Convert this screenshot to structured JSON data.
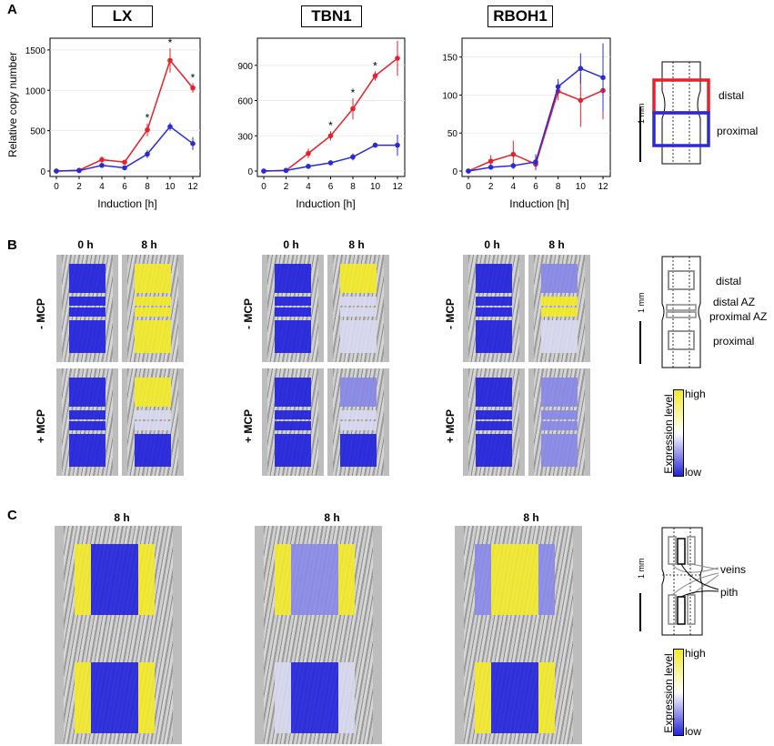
{
  "panels": {
    "a": "A",
    "b": "B",
    "c": "C"
  },
  "genes": [
    "LX",
    "TBN1",
    "RBOH1"
  ],
  "axis": {
    "ylabel": "Relative copy number",
    "xlabel": "Induction [h]"
  },
  "chart_data": [
    {
      "type": "line",
      "title": "LX",
      "xlabel": "Induction [h]",
      "ylabel": "Relative copy number",
      "x": [
        0,
        2,
        4,
        6,
        8,
        10,
        12
      ],
      "ylim": [
        0,
        1600
      ],
      "yticks": [
        0,
        500,
        1000,
        1500
      ],
      "series": [
        {
          "name": "distal",
          "color": "#e8202a",
          "values": [
            0,
            10,
            140,
            110,
            510,
            1370,
            1030
          ],
          "err": [
            5,
            10,
            40,
            20,
            80,
            150,
            60
          ]
        },
        {
          "name": "proximal",
          "color": "#2b2bd6",
          "values": [
            0,
            5,
            70,
            40,
            210,
            550,
            340
          ],
          "err": [
            3,
            5,
            15,
            10,
            50,
            50,
            80
          ]
        }
      ],
      "significant_x": [
        8,
        10,
        12
      ]
    },
    {
      "type": "line",
      "title": "TBN1",
      "xlabel": "Induction [h]",
      "ylabel": "",
      "x": [
        0,
        2,
        4,
        6,
        8,
        10,
        12
      ],
      "ylim": [
        0,
        1100
      ],
      "yticks": [
        0,
        300,
        600,
        900
      ],
      "series": [
        {
          "name": "distal",
          "color": "#e8202a",
          "values": [
            0,
            5,
            150,
            300,
            530,
            810,
            960
          ],
          "err": [
            3,
            5,
            40,
            40,
            90,
            40,
            150
          ]
        },
        {
          "name": "proximal",
          "color": "#2b2bd6",
          "values": [
            0,
            5,
            40,
            70,
            120,
            220,
            220
          ],
          "err": [
            3,
            5,
            20,
            10,
            30,
            10,
            90
          ]
        }
      ],
      "significant_x": [
        6,
        8,
        10
      ]
    },
    {
      "type": "line",
      "title": "RBOH1",
      "xlabel": "Induction [h]",
      "ylabel": "",
      "x": [
        0,
        2,
        4,
        6,
        8,
        10,
        12
      ],
      "ylim": [
        0,
        170
      ],
      "yticks": [
        0,
        50,
        100,
        150
      ],
      "series": [
        {
          "name": "distal",
          "color": "#e8202a",
          "values": [
            0,
            13,
            22,
            9,
            105,
            93,
            106
          ],
          "err": [
            2,
            8,
            18,
            8,
            12,
            35,
            38
          ]
        },
        {
          "name": "proximal",
          "color": "#2b2bd6",
          "values": [
            0,
            5,
            7,
            12,
            111,
            135,
            123
          ],
          "err": [
            2,
            3,
            4,
            10,
            10,
            20,
            45
          ]
        }
      ],
      "significant_x": []
    }
  ],
  "diagram_a": {
    "scale": "1 mm",
    "distal": "distal",
    "proximal": "proximal"
  },
  "panel_b": {
    "times": [
      "0 h",
      "8 h"
    ],
    "rows": [
      "- MCP",
      "+ MCP"
    ],
    "regions": [
      "distal",
      "distal AZ",
      "proximal AZ",
      "proximal"
    ],
    "scale": "1 mm",
    "legend_title": "Expression level",
    "legend_high": "high",
    "legend_low": "low"
  },
  "panel_c": {
    "time": "8 h",
    "labels": [
      "veins",
      "pith"
    ],
    "scale": "1 mm",
    "legend_title": "Expression level",
    "legend_high": "high",
    "legend_low": "low"
  },
  "colors": {
    "yellow": "#f3ea2a",
    "blue": "#2222dd",
    "light_blue": "#8888e8",
    "pale": "#d8d8f0"
  }
}
